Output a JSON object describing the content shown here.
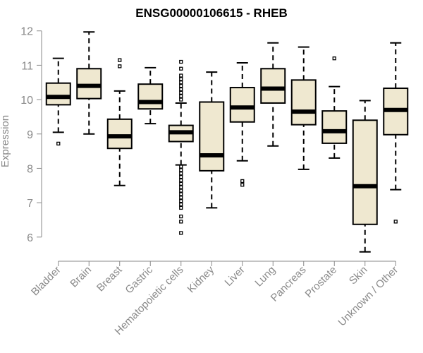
{
  "chart_data": {
    "type": "boxplot",
    "title": "ENSG00000106615 - RHEB",
    "ylabel": "Expression",
    "xlabel": "",
    "ylim": [
      5.4,
      12.2
    ],
    "yticks": [
      6,
      7,
      8,
      9,
      10,
      11,
      12
    ],
    "grid": false,
    "legend": "none",
    "colors": {
      "box_fill": "#efe8d0",
      "box_stroke": "#000000",
      "axis": "#8a8a8a",
      "text": "#8a8a8a",
      "title": "#000000"
    },
    "categories": [
      "Bladder",
      "Brain",
      "Breast",
      "Gastric",
      "Hematopoietic cells",
      "Kidney",
      "Liver",
      "Lung",
      "Pancreas",
      "Prostate",
      "Skin",
      "Unknown / Other"
    ],
    "boxes": [
      {
        "name": "Bladder",
        "whisker_low": 9.05,
        "q1": 9.85,
        "median": 10.08,
        "q3": 10.48,
        "whisker_high": 11.2,
        "outliers": [
          8.72
        ]
      },
      {
        "name": "Brain",
        "whisker_low": 9.0,
        "q1": 10.03,
        "median": 10.4,
        "q3": 10.9,
        "whisker_high": 11.97,
        "outliers": []
      },
      {
        "name": "Breast",
        "whisker_low": 7.5,
        "q1": 8.58,
        "median": 8.93,
        "q3": 9.43,
        "whisker_high": 10.25,
        "outliers": [
          10.97,
          11.15
        ]
      },
      {
        "name": "Gastric",
        "whisker_low": 9.3,
        "q1": 9.73,
        "median": 9.93,
        "q3": 10.45,
        "whisker_high": 10.93,
        "outliers": []
      },
      {
        "name": "Hematopoietic cells",
        "whisker_low": 8.1,
        "q1": 8.78,
        "median": 9.05,
        "q3": 9.25,
        "whisker_high": 9.9,
        "outliers": [
          10.0,
          10.1,
          10.2,
          10.3,
          10.4,
          10.5,
          10.6,
          10.7,
          10.9,
          11.1,
          8.05,
          7.95,
          7.85,
          7.75,
          7.65,
          7.55,
          7.45,
          7.35,
          7.25,
          7.15,
          7.05,
          6.95,
          6.85,
          6.6,
          6.45,
          6.12
        ]
      },
      {
        "name": "Kidney",
        "whisker_low": 6.85,
        "q1": 7.93,
        "median": 8.38,
        "q3": 9.93,
        "whisker_high": 10.8,
        "outliers": []
      },
      {
        "name": "Liver",
        "whisker_low": 8.22,
        "q1": 9.35,
        "median": 9.77,
        "q3": 10.35,
        "whisker_high": 11.07,
        "outliers": [
          7.63,
          7.52
        ]
      },
      {
        "name": "Lung",
        "whisker_low": 8.65,
        "q1": 9.9,
        "median": 10.32,
        "q3": 10.9,
        "whisker_high": 11.65,
        "outliers": []
      },
      {
        "name": "Pancreas",
        "whisker_low": 7.97,
        "q1": 9.27,
        "median": 9.65,
        "q3": 10.57,
        "whisker_high": 11.53,
        "outliers": []
      },
      {
        "name": "Prostate",
        "whisker_low": 8.3,
        "q1": 8.73,
        "median": 9.08,
        "q3": 9.67,
        "whisker_high": 10.38,
        "outliers": [
          11.2
        ]
      },
      {
        "name": "Skin",
        "whisker_low": 5.57,
        "q1": 6.37,
        "median": 7.48,
        "q3": 9.4,
        "whisker_high": 9.97,
        "outliers": []
      },
      {
        "name": "Unknown / Other",
        "whisker_low": 7.38,
        "q1": 8.98,
        "median": 9.7,
        "q3": 10.33,
        "whisker_high": 11.65,
        "outliers": [
          6.45
        ]
      }
    ]
  }
}
